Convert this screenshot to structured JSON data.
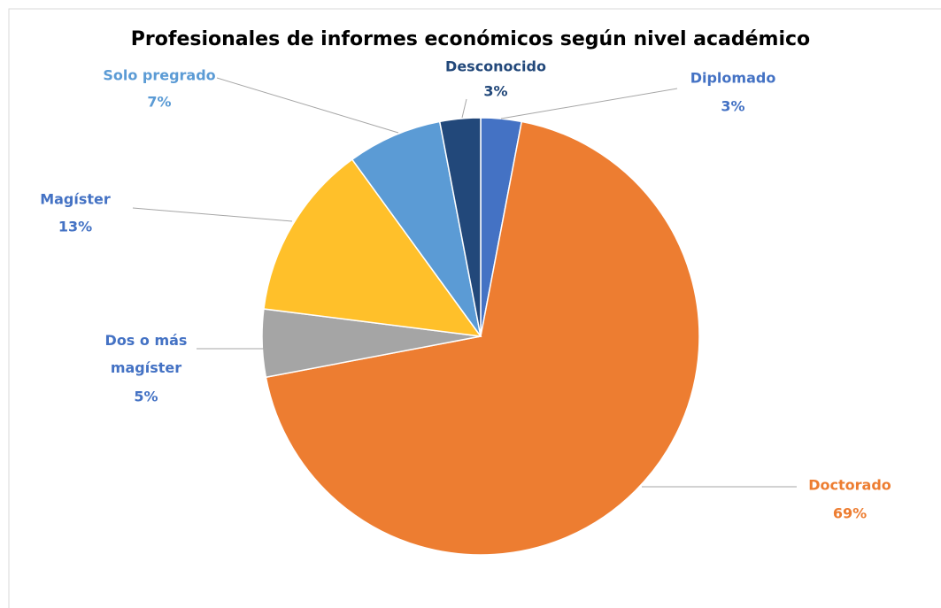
{
  "chart_data": {
    "type": "pie",
    "title": "Profesionales de informes económicos según nivel académico",
    "categories": [
      "Diplomado",
      "Doctorado",
      "Dos o más magíster",
      "Magíster",
      "Solo pregrado",
      "Desconocido"
    ],
    "values": [
      3,
      69,
      5,
      13,
      7,
      3
    ],
    "value_labels": [
      "3%",
      "69%",
      "5%",
      "13%",
      "7%",
      "3%"
    ],
    "colors": [
      "#4472c4",
      "#ed7d31",
      "#a5a5a5",
      "#ffc02a",
      "#5b9bd5",
      "#22487a"
    ],
    "label_colors": [
      "#4472c4",
      "#ed7d31",
      "#4472c4",
      "#4472c4",
      "#5b9bd5",
      "#22487a"
    ]
  }
}
